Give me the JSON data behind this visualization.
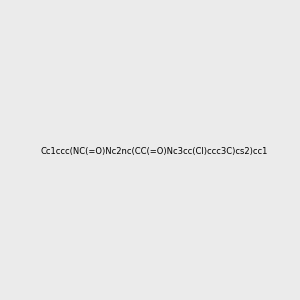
{
  "smiles": "Cc1ccc(NC(=O)Nc2nc(CC(=O)Nc3cc(Cl)ccc3C)cs2)cc1",
  "background_color": "#ebebeb",
  "fig_width": 3.0,
  "fig_height": 3.0,
  "dpi": 100
}
